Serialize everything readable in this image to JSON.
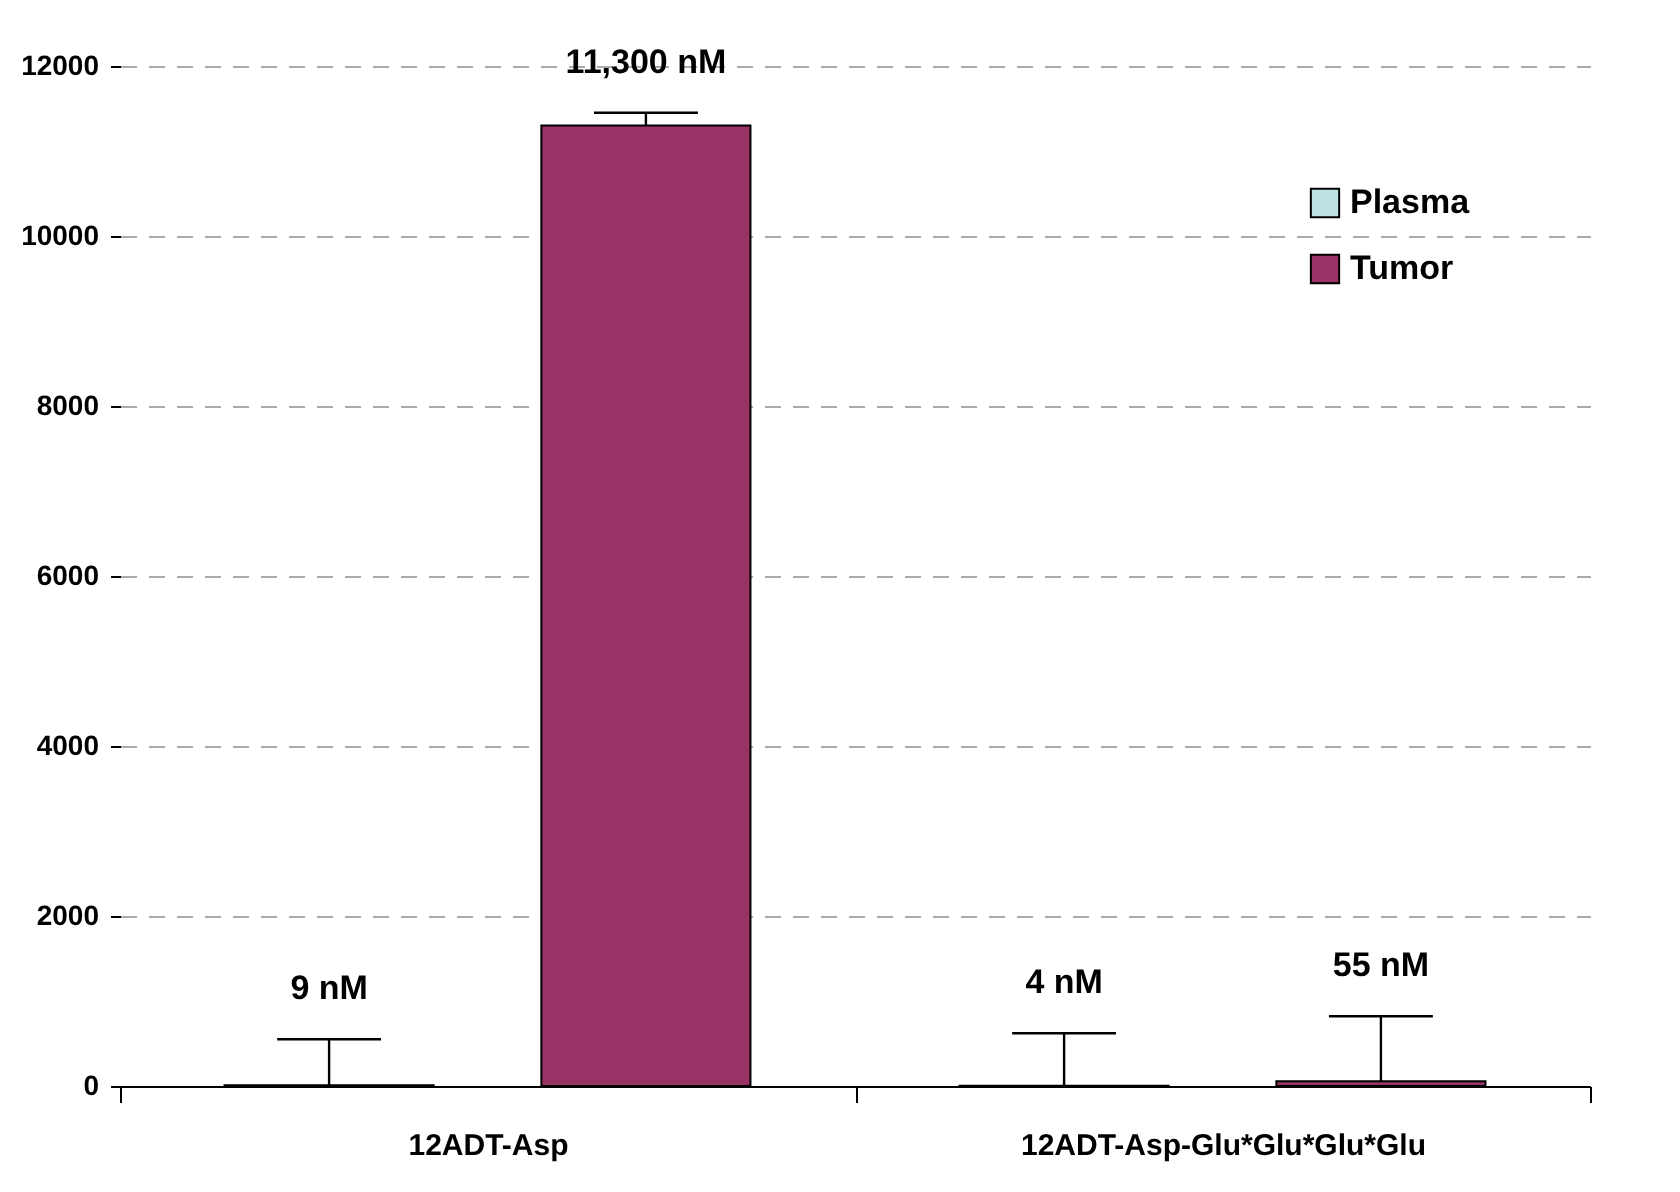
{
  "chart_data": {
    "type": "bar",
    "categories": [
      "12ADT-Asp",
      "12ADT-Asp-Glu*Glu*Glu*Glu"
    ],
    "series": [
      {
        "name": "Plasma",
        "color": "#bfe3e3",
        "values": [
          9,
          4
        ],
        "errors": [
          [
            9,
            550
          ],
          [
            4,
            620
          ]
        ],
        "value_labels": [
          "9 nM",
          "4 nM"
        ]
      },
      {
        "name": "Tumor",
        "color": "#993366",
        "values": [
          11300,
          55
        ],
        "errors": [
          [
            11300,
            11450
          ],
          [
            55,
            820
          ]
        ],
        "value_labels": [
          "11,300 nM",
          "55 nM"
        ]
      }
    ],
    "ylim": [
      0,
      12000
    ],
    "yticks": [
      0,
      2000,
      4000,
      6000,
      8000,
      10000,
      12000
    ],
    "grid": "y",
    "legend": "top right"
  }
}
